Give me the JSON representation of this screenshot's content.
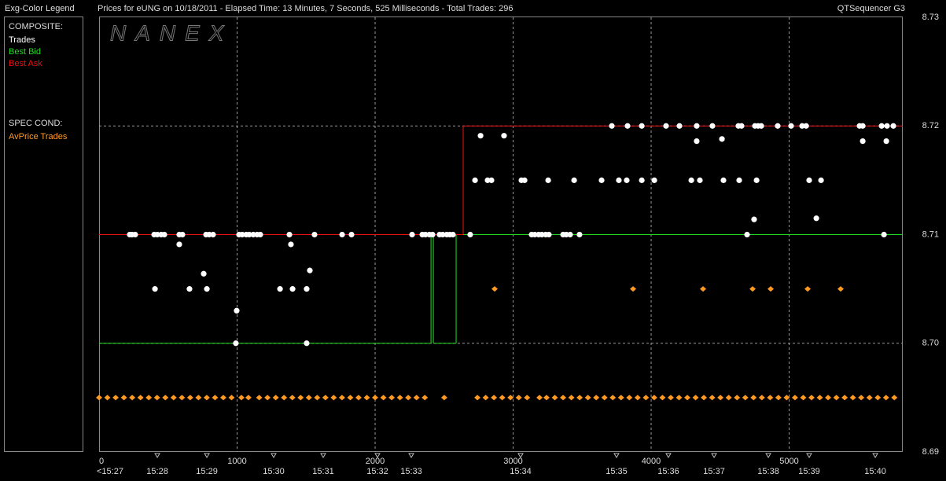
{
  "chart_data": {
    "type": "scatter",
    "legend_title": "Exg-Color Legend",
    "title": "Prices for  eUNG  on  10/18/2011  -  Elapsed Time: 13 Minutes, 7 Seconds, 525 Milliseconds  -  Total Trades: 296",
    "product": "QTSequencer G3",
    "watermark": "NANEX",
    "legend_groups": [
      "COMPOSITE:",
      "SPEC COND:"
    ],
    "xlim": [
      0,
      5823
    ],
    "xticks": [
      0,
      1000,
      2000,
      3000,
      4000,
      5000
    ],
    "time_ticks": [
      {
        "value": 0,
        "label": "<15:27"
      },
      {
        "value": 422,
        "label": "15:28"
      },
      {
        "value": 781,
        "label": "15:29"
      },
      {
        "value": 1265,
        "label": "15:30"
      },
      {
        "value": 1624,
        "label": "15:31"
      },
      {
        "value": 2017,
        "label": "15:32"
      },
      {
        "value": 2262,
        "label": "15:33"
      },
      {
        "value": 3054,
        "label": "15:34"
      },
      {
        "value": 3749,
        "label": "15:35"
      },
      {
        "value": 4125,
        "label": "15:36"
      },
      {
        "value": 4456,
        "label": "15:37"
      },
      {
        "value": 4849,
        "label": "15:38"
      },
      {
        "value": 5145,
        "label": "15:39"
      },
      {
        "value": 5624,
        "label": "15:40"
      }
    ],
    "ylim": [
      8.69,
      8.73
    ],
    "yticks": [
      8.69,
      {
        "value": 8.7,
        "label": "8.70"
      },
      8.71,
      8.72,
      8.73
    ],
    "grid": true,
    "series": [
      {
        "name": "Trades",
        "group": 0,
        "mode": "markers",
        "marker": "circle",
        "color": "#ffffff",
        "x": [
          222,
          239,
          262,
          399,
          422,
          450,
          473,
          581,
          604,
          775,
          798,
          826,
          1014,
          1037,
          1066,
          1088,
          1117,
          1145,
          1168,
          1379,
          1561,
          1761,
          1829,
          2268,
          2342,
          2365,
          2393,
          2416,
          2467,
          2490,
          2519,
          2541,
          2564,
          2689,
          3134,
          3157,
          3185,
          3208,
          3236,
          3259,
          3362,
          3385,
          3413,
          3481,
          4695,
          5687,
          405,
          655,
          781,
          1311,
          1402,
          1504,
          758,
          1527,
          581,
          1390,
          991,
          1504,
          997,
          2724,
          2815,
          2843,
          3060,
          3083,
          3254,
          3442,
          3641,
          3766,
          3823,
          3932,
          4023,
          4291,
          4353,
          4524,
          4638,
          4764,
          5145,
          5231,
          3715,
          3829,
          3932,
          4108,
          4205,
          4330,
          4444,
          4632,
          4655,
          4752,
          4775,
          4798,
          4917,
          5014,
          5094,
          5123,
          5510,
          5533,
          5670,
          5709,
          5755,
          2764,
          2934,
          4513,
          4330,
          5533,
          5704,
          4746,
          5197
        ],
        "values": [
          8.71,
          8.71,
          8.71,
          8.71,
          8.71,
          8.71,
          8.71,
          8.71,
          8.71,
          8.71,
          8.71,
          8.71,
          8.71,
          8.71,
          8.71,
          8.71,
          8.71,
          8.71,
          8.71,
          8.71,
          8.71,
          8.71,
          8.71,
          8.71,
          8.71,
          8.71,
          8.71,
          8.71,
          8.71,
          8.71,
          8.71,
          8.71,
          8.71,
          8.71,
          8.71,
          8.71,
          8.71,
          8.71,
          8.71,
          8.71,
          8.71,
          8.71,
          8.71,
          8.71,
          8.71,
          8.71,
          8.705,
          8.705,
          8.705,
          8.705,
          8.705,
          8.705,
          8.7064,
          8.7067,
          8.7091,
          8.7091,
          8.7,
          8.7,
          8.703,
          8.715,
          8.715,
          8.715,
          8.715,
          8.715,
          8.715,
          8.715,
          8.715,
          8.715,
          8.715,
          8.715,
          8.715,
          8.715,
          8.715,
          8.715,
          8.715,
          8.715,
          8.715,
          8.715,
          8.72,
          8.72,
          8.72,
          8.72,
          8.72,
          8.72,
          8.72,
          8.72,
          8.72,
          8.72,
          8.72,
          8.72,
          8.72,
          8.72,
          8.72,
          8.72,
          8.72,
          8.72,
          8.72,
          8.72,
          8.72,
          8.7191,
          8.7191,
          8.7188,
          8.7186,
          8.7186,
          8.7186,
          8.7114,
          8.7115
        ]
      },
      {
        "name": "Best Bid",
        "group": 0,
        "mode": "step",
        "color": "#22dd22",
        "x": [
          0,
          2405,
          2422,
          2587
        ],
        "values": [
          8.7,
          8.71,
          8.7,
          8.71
        ]
      },
      {
        "name": "Best Ask",
        "group": 0,
        "mode": "step",
        "color": "#ee1111",
        "x": [
          0,
          2638
        ],
        "values": [
          8.71,
          8.72
        ]
      },
      {
        "name": "AvPrice Trades",
        "group": 1,
        "mode": "markers",
        "marker": "diamond",
        "color": "#ff9922",
        "x": [
          2866,
          3869,
          4376,
          4735,
          4866,
          5134,
          5373,
          0,
          60,
          120,
          180,
          240,
          300,
          360,
          420,
          480,
          540,
          600,
          660,
          720,
          780,
          840,
          900,
          960,
          1031,
          1082,
          1160,
          1220,
          1280,
          1340,
          1400,
          1460,
          1520,
          1580,
          1640,
          1700,
          1760,
          1820,
          1880,
          1940,
          2000,
          2060,
          2120,
          2180,
          2240,
          2300,
          2360,
          2501,
          2741,
          2801,
          2861,
          2921,
          2981,
          3041,
          3101,
          3191,
          3242,
          3302,
          3362,
          3422,
          3482,
          3542,
          3602,
          3662,
          3722,
          3782,
          3842,
          3902,
          3962,
          4022,
          4082,
          4142,
          4202,
          4262,
          4322,
          4382,
          4442,
          4502,
          4562,
          4622,
          4682,
          4742,
          4802,
          4862,
          4922,
          4982,
          5042,
          5102,
          5162,
          5222,
          5282,
          5342,
          5402,
          5462,
          5522,
          5582,
          5642,
          5702,
          5762
        ],
        "values": [
          8.705,
          8.705,
          8.705,
          8.705,
          8.705,
          8.705,
          8.705,
          8.695,
          8.695,
          8.695,
          8.695,
          8.695,
          8.695,
          8.695,
          8.695,
          8.695,
          8.695,
          8.695,
          8.695,
          8.695,
          8.695,
          8.695,
          8.695,
          8.695,
          8.695,
          8.695,
          8.695,
          8.695,
          8.695,
          8.695,
          8.695,
          8.695,
          8.695,
          8.695,
          8.695,
          8.695,
          8.695,
          8.695,
          8.695,
          8.695,
          8.695,
          8.695,
          8.695,
          8.695,
          8.695,
          8.695,
          8.695,
          8.695,
          8.695,
          8.695,
          8.695,
          8.695,
          8.695,
          8.695,
          8.695,
          8.695,
          8.695,
          8.695,
          8.695,
          8.695,
          8.695,
          8.695,
          8.695,
          8.695,
          8.695,
          8.695,
          8.695,
          8.695,
          8.695,
          8.695,
          8.695,
          8.695,
          8.695,
          8.695,
          8.695,
          8.695,
          8.695,
          8.695,
          8.695,
          8.695,
          8.695,
          8.695,
          8.695,
          8.695,
          8.695,
          8.695,
          8.695,
          8.695,
          8.695,
          8.695,
          8.695,
          8.695,
          8.695,
          8.695,
          8.695,
          8.695,
          8.695,
          8.695,
          8.695
        ]
      }
    ]
  }
}
